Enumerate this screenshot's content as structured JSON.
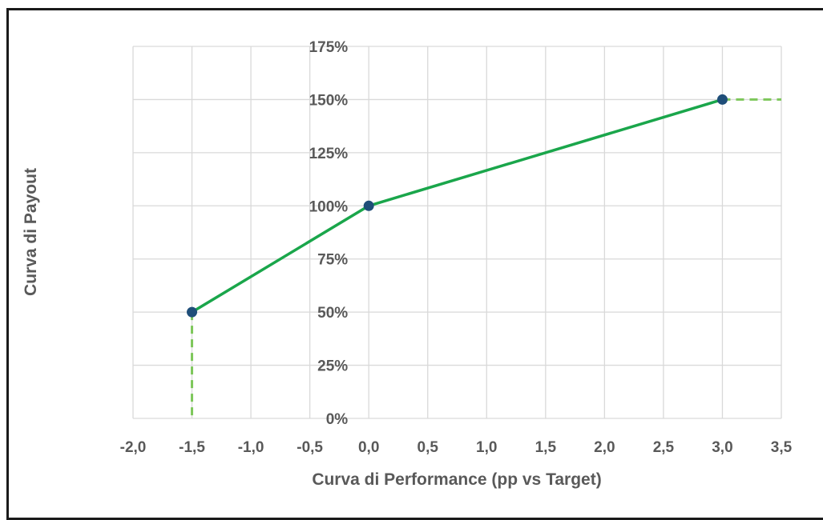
{
  "chart_data": {
    "type": "line",
    "title": "",
    "xlabel": "Curva di Performance (pp vs Target)",
    "ylabel": "Curva di Payout",
    "xlim": [
      -2.0,
      3.5
    ],
    "ylim": [
      0,
      175
    ],
    "x_ticks": [
      -2.0,
      -1.5,
      -1.0,
      -0.5,
      0.0,
      0.5,
      1.0,
      1.5,
      2.0,
      2.5,
      3.0,
      3.5
    ],
    "x_tick_labels": [
      "-2,0",
      "-1,5",
      "-1,0",
      "-0,5",
      "0,0",
      "0,5",
      "1,0",
      "1,5",
      "2,0",
      "2,5",
      "3,0",
      "3,5"
    ],
    "y_ticks": [
      0,
      25,
      50,
      75,
      100,
      125,
      150,
      175
    ],
    "y_tick_labels": [
      "0%",
      "25%",
      "50%",
      "75%",
      "100%",
      "125%",
      "150%",
      "175%"
    ],
    "grid": true,
    "y_axis_at_x": 0.0,
    "series": [
      {
        "style": "solid",
        "color": "#1aa64b",
        "points": [
          {
            "x": -1.5,
            "y": 50
          },
          {
            "x": 0.0,
            "y": 100
          },
          {
            "x": 3.0,
            "y": 150
          }
        ],
        "marker_color": "#1f4e79"
      },
      {
        "style": "dashed",
        "color": "#7dc75a",
        "points": [
          {
            "x": -1.5,
            "y": 50
          },
          {
            "x": -1.5,
            "y": 0
          }
        ]
      },
      {
        "style": "dashed",
        "color": "#7dc75a",
        "points": [
          {
            "x": 3.0,
            "y": 150
          },
          {
            "x": 3.5,
            "y": 150
          }
        ]
      }
    ],
    "colors": {
      "grid": "#d9d9d9",
      "text": "#595959"
    }
  }
}
